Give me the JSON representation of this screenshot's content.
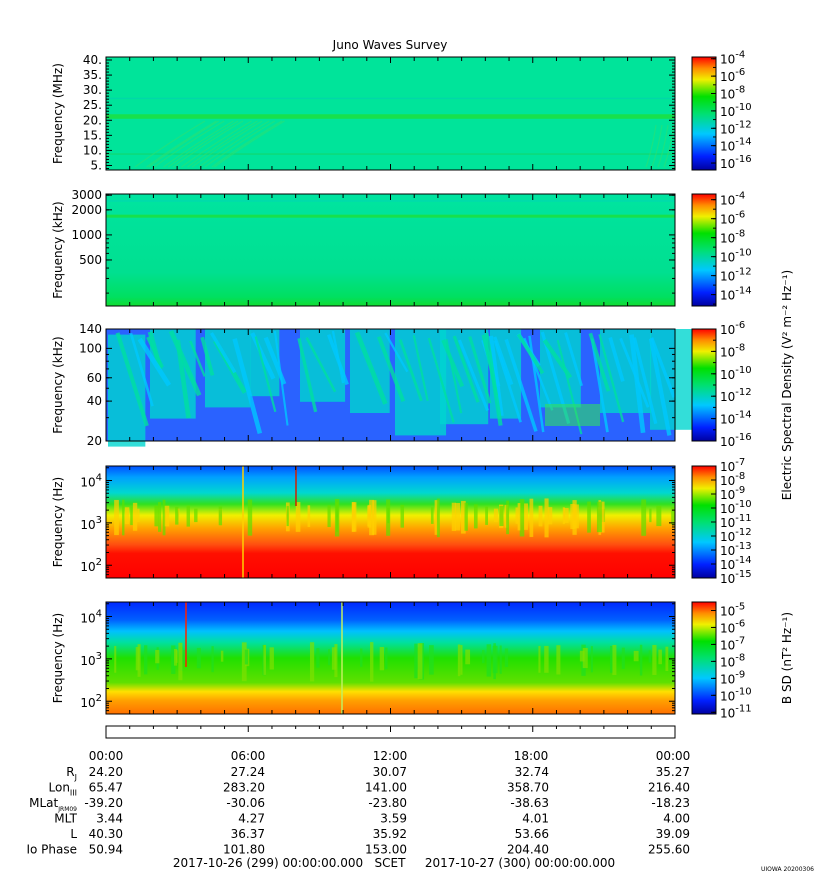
{
  "chart_data": {
    "type": "heatmap",
    "title": "Juno Waves Survey",
    "scale_credit": "UIOWA 20200306",
    "time_axis": {
      "tick_labels": [
        "00:00",
        "06:00",
        "12:00",
        "18:00",
        "00:00"
      ],
      "start": "2017-10-26 (299) 00:00:00.000",
      "end": "2017-10-27 (300) 00:00:00.000",
      "frame": "SCET"
    },
    "ephemeris": [
      {
        "label": "R",
        "sub": "J",
        "values": [
          "24.20",
          "27.24",
          "30.07",
          "32.74",
          "35.27"
        ]
      },
      {
        "label": "Lon",
        "sub": "III",
        "values": [
          "65.47",
          "283.20",
          "141.00",
          "358.70",
          "216.40"
        ]
      },
      {
        "label": "MLat",
        "sub": "JRM09",
        "values": [
          "-39.20",
          "-30.06",
          "-23.80",
          "-38.63",
          "-18.23"
        ]
      },
      {
        "label": "MLT",
        "sub": "",
        "values": [
          "3.44",
          "4.27",
          "3.59",
          "4.01",
          "4.00"
        ]
      },
      {
        "label": "L",
        "sub": "",
        "values": [
          "40.30",
          "36.37",
          "35.92",
          "53.66",
          "39.09"
        ]
      },
      {
        "label": "Io Phase",
        "sub": "",
        "values": [
          "50.94",
          "101.80",
          "153.00",
          "204.40",
          "255.60"
        ]
      }
    ],
    "panels": [
      {
        "id": "hfr-high",
        "ylabel": "Frequency (MHz)",
        "yscale": "linear",
        "ylim": [
          3.5,
          41
        ],
        "yticks": [
          {
            "v": 40,
            "label": "40."
          },
          {
            "v": 35,
            "label": "35."
          },
          {
            "v": 30,
            "label": "30."
          },
          {
            "v": 25,
            "label": "25."
          },
          {
            "v": 20,
            "label": "20."
          },
          {
            "v": 15,
            "label": "15."
          },
          {
            "v": 10,
            "label": "10."
          },
          {
            "v": 5,
            "label": "5."
          }
        ],
        "colorbar": {
          "label": "",
          "exponents": [
            "-4",
            "-6",
            "-8",
            "-10",
            "-12",
            "-14",
            "-16"
          ],
          "range": [
            -16.8,
            -3.8
          ],
          "palette": "jet"
        }
      },
      {
        "id": "hfr-low",
        "ylabel": "Frequency (kHz)",
        "yscale": "log",
        "ylim": [
          140,
          3100
        ],
        "yticks": [
          {
            "v": 3000,
            "label": "3000"
          },
          {
            "v": 2000,
            "label": "2000"
          },
          {
            "v": 1000,
            "label": "1000"
          },
          {
            "v": 500,
            "label": "500"
          }
        ],
        "colorbar": {
          "label": "",
          "exponents": [
            "-4",
            "-6",
            "-8",
            "-10",
            "-12",
            "-14"
          ],
          "range": [
            -15.2,
            -3.4
          ],
          "palette": "jet"
        }
      },
      {
        "id": "lfr-high",
        "ylabel": "Frequency (kHz)",
        "yscale": "log",
        "ylim": [
          20,
          140
        ],
        "yticks": [
          {
            "v": 140,
            "label": "140"
          },
          {
            "v": 100,
            "label": "100"
          },
          {
            "v": 60,
            "label": "60"
          },
          {
            "v": 40,
            "label": "40"
          },
          {
            "v": 20,
            "label": "20"
          }
        ],
        "colorbar": {
          "label": "Electric Spectral Density (V² m⁻² Hz⁻¹)",
          "exponents": [
            "-6",
            "-8",
            "-10",
            "-12",
            "-14",
            "-16"
          ],
          "range": [
            -16,
            -6
          ],
          "palette": "jet"
        }
      },
      {
        "id": "lfr-e",
        "ylabel": "Frequency (Hz)",
        "yscale": "log",
        "ylim": [
          50,
          22000
        ],
        "yticks": [
          {
            "v": 10000,
            "base": "10",
            "exp": "4"
          },
          {
            "v": 1000,
            "base": "10",
            "exp": "3"
          },
          {
            "v": 100,
            "base": "10",
            "exp": "2"
          }
        ],
        "colorbar": {
          "label": "",
          "exponents": [
            "-7",
            "-8",
            "-9",
            "-10",
            "-11",
            "-12",
            "-13",
            "-14",
            "-15"
          ],
          "range": [
            -15,
            -7
          ],
          "palette": "jet"
        }
      },
      {
        "id": "lfr-b",
        "ylabel": "Frequency (Hz)",
        "yscale": "log",
        "ylim": [
          50,
          22000
        ],
        "yticks": [
          {
            "v": 10000,
            "base": "10",
            "exp": "4"
          },
          {
            "v": 1000,
            "base": "10",
            "exp": "3"
          },
          {
            "v": 100,
            "base": "10",
            "exp": "2"
          }
        ],
        "colorbar": {
          "label": "B SD (nT² Hz⁻¹)",
          "exponents": [
            "-5",
            "-6",
            "-7",
            "-8",
            "-9",
            "-10",
            "-11"
          ],
          "range": [
            -11.1,
            -4.5
          ],
          "palette": "jet"
        }
      }
    ],
    "colors": {
      "hfr_background": "#00e49a",
      "hfr_band": "#18e04c",
      "lfr_background": "#2a62ff",
      "lfr_emission": "#00d6cf",
      "red": "#ff1000",
      "orange": "#ff9a00",
      "yellow": "#fff200",
      "green": "#2fe000",
      "cyan": "#00c8ff",
      "blue": "#0028ff"
    }
  }
}
